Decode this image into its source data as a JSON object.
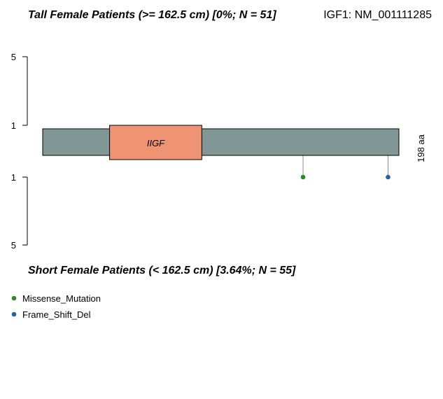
{
  "chart_data": {
    "type": "lollipop",
    "gene_id": "IGF1: NM_001111285",
    "protein_length": 198,
    "protein_length_label": "198 aa",
    "top_track": {
      "title": "Tall Female Patients (>= 162.5 cm) [0%; N = 51]",
      "y_ticks": [
        "5",
        "1"
      ],
      "mutations": []
    },
    "bottom_track": {
      "title": "Short Female Patients (< 162.5 cm) [3.64%; N = 55]",
      "y_ticks": [
        "1",
        "5"
      ],
      "mutations": [
        {
          "position": 145,
          "count": 1,
          "type": "Missense_Mutation"
        },
        {
          "position": 192,
          "count": 1,
          "type": "Frame_Shift_Del"
        }
      ]
    },
    "domains": [
      {
        "name": "IIGF",
        "start": 38,
        "end": 89,
        "color": "#ef9472"
      }
    ],
    "backbone_color": "#819795",
    "legend": [
      {
        "label": "Missense_Mutation",
        "color": "#2b8b2b"
      },
      {
        "label": "Frame_Shift_Del",
        "color": "#1f64a8"
      }
    ]
  }
}
